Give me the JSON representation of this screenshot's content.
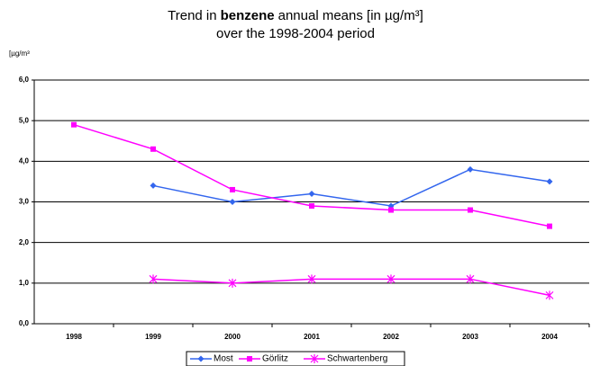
{
  "chart_data": {
    "type": "line",
    "title": [
      "Trend in",
      "benzene",
      "annual means [in µg/m³]"
    ],
    "subtitle": "over the 1998-2004 period",
    "y_label": "[µg/m³",
    "categories": [
      "1998",
      "1999",
      "2000",
      "2001",
      "2002",
      "2003",
      "2004"
    ],
    "series": [
      {
        "name": "Most",
        "color": "#3366ee",
        "marker": "diamond",
        "values": [
          null,
          3.4,
          3.0,
          3.2,
          2.9,
          3.8,
          3.5
        ]
      },
      {
        "name": "Görlitz",
        "color": "#ff00ff",
        "marker": "square",
        "values": [
          4.9,
          4.3,
          3.3,
          2.9,
          2.8,
          2.8,
          2.4
        ]
      },
      {
        "name": "Schwartenberg",
        "color": "#ff00ff",
        "marker": "asterisk",
        "values": [
          null,
          1.1,
          1.0,
          1.1,
          1.1,
          1.1,
          0.7
        ]
      }
    ],
    "ylim": [
      0,
      6
    ],
    "yticks": [
      {
        "value": 0,
        "label": "0,0"
      },
      {
        "value": 1,
        "label": "1,0"
      },
      {
        "value": 2,
        "label": "2,0"
      },
      {
        "value": 3,
        "label": "3,0"
      },
      {
        "value": 4,
        "label": "4,0"
      },
      {
        "value": 5,
        "label": "5,0"
      },
      {
        "value": 6,
        "label": "6,0"
      }
    ],
    "grid": true,
    "legend": "bottom"
  }
}
